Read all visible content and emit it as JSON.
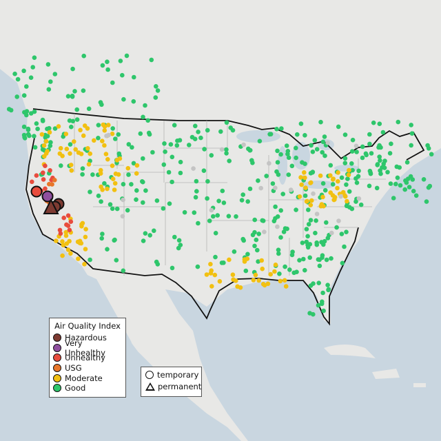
{
  "colors": {
    "land": "#e8e8e6",
    "water": "#c9d6e0",
    "state_line": "#b8b8b8",
    "border": "#111111",
    "Hazardous": "#7e3b32",
    "Very Unhealthy": "#8f4f9e",
    "Unhealthy": "#e84c3d",
    "USG": "#e8762a",
    "Moderate": "#f2c011",
    "Good": "#2ec66b",
    "no_data": "#c4c4c4"
  },
  "legend": {
    "title": "Air Quality Index",
    "categories": [
      {
        "label": "Hazardous",
        "color": "#7e3b32"
      },
      {
        "label": "Very Unhealthy",
        "color": "#8f4f9e"
      },
      {
        "label": "Unhealthy",
        "color": "#e84c3d"
      },
      {
        "label": "USG",
        "color": "#e8762a"
      },
      {
        "label": "Moderate",
        "color": "#f2c011"
      },
      {
        "label": "Good",
        "color": "#2ec66b"
      }
    ]
  },
  "type_legend": {
    "temporary": "temporary",
    "permanent": "permanent"
  }
}
